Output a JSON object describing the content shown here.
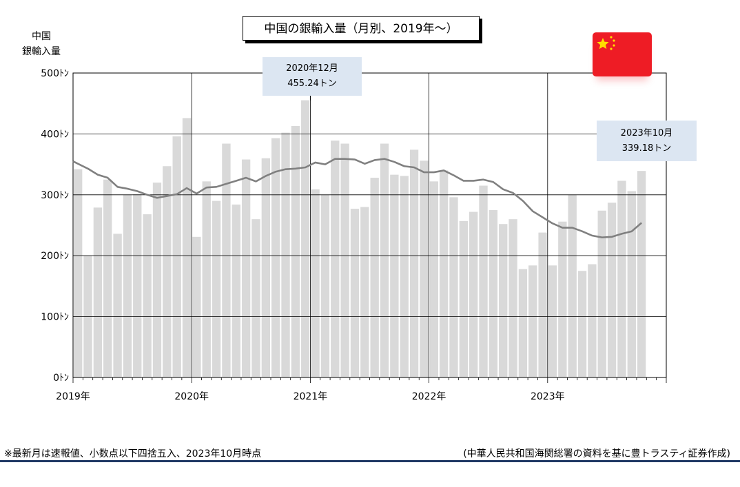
{
  "chart_data": {
    "type": "bar",
    "title": "中国の銀輸入量（月別、2019年～）",
    "ylabel": [
      "中国",
      "銀輸入量"
    ],
    "xlabel": "",
    "ylim": [
      0,
      500
    ],
    "yticks": [
      "0ﾄﾝ",
      "100ﾄﾝ",
      "200ﾄﾝ",
      "300ﾄﾝ",
      "400ﾄﾝ",
      "500ﾄﾝ"
    ],
    "xticks": [
      "2019年",
      "2020年",
      "2021年",
      "2022年",
      "2023年"
    ],
    "grid": true,
    "bar_color": "#d9d9d9",
    "line_color": "#808080",
    "categories": [
      "2019-01",
      "2019-02",
      "2019-03",
      "2019-04",
      "2019-05",
      "2019-06",
      "2019-07",
      "2019-08",
      "2019-09",
      "2019-10",
      "2019-11",
      "2019-12",
      "2020-01",
      "2020-02",
      "2020-03",
      "2020-04",
      "2020-05",
      "2020-06",
      "2020-07",
      "2020-08",
      "2020-09",
      "2020-10",
      "2020-11",
      "2020-12",
      "2021-01",
      "2021-02",
      "2021-03",
      "2021-04",
      "2021-05",
      "2021-06",
      "2021-07",
      "2021-08",
      "2021-09",
      "2021-10",
      "2021-11",
      "2021-12",
      "2022-01",
      "2022-02",
      "2022-03",
      "2022-04",
      "2022-05",
      "2022-06",
      "2022-07",
      "2022-08",
      "2022-09",
      "2022-10",
      "2022-11",
      "2022-12",
      "2023-01",
      "2023-02",
      "2023-03",
      "2023-04",
      "2023-05",
      "2023-06",
      "2023-07",
      "2023-08",
      "2023-09",
      "2023-10"
    ],
    "series": [
      {
        "type": "bar",
        "values": [
          342,
          200,
          279,
          325,
          236,
          300,
          301,
          268,
          320,
          347,
          396,
          426,
          231,
          322,
          290,
          384,
          284,
          358,
          260,
          360,
          393,
          402,
          413,
          455.24,
          309,
          300,
          389,
          384,
          277,
          280,
          328,
          384,
          333,
          331,
          374,
          356,
          322,
          340,
          296,
          257,
          272,
          315,
          275,
          252,
          260,
          178,
          184,
          238,
          184,
          256,
          300,
          175,
          186,
          274,
          287,
          323,
          306,
          339.18
        ]
      },
      {
        "type": "line",
        "values": [
          355,
          343,
          333,
          328,
          313,
          310,
          306,
          300,
          295,
          298,
          301,
          311,
          302,
          312,
          313,
          318,
          323,
          328,
          322,
          331,
          338,
          342,
          343,
          345,
          353,
          350,
          359,
          359,
          358,
          351,
          357,
          359,
          354,
          347,
          345,
          337,
          337,
          340,
          332,
          323,
          323,
          325,
          321,
          309,
          303,
          290,
          273,
          263,
          253,
          246,
          246,
          240,
          233,
          230,
          231,
          236,
          240,
          254
        ]
      }
    ],
    "annotations": [
      {
        "text": "2020年12月",
        "value": "455.24トン"
      },
      {
        "text": "2023年10月",
        "value": "339.18トン"
      }
    ]
  },
  "notes": {
    "left": "※最新月は速報値、小数点以下四捨五入、2023年10月時点",
    "right": "(中華人民共和国海関総署の資料を基に豊トラスティ証券作成)"
  }
}
